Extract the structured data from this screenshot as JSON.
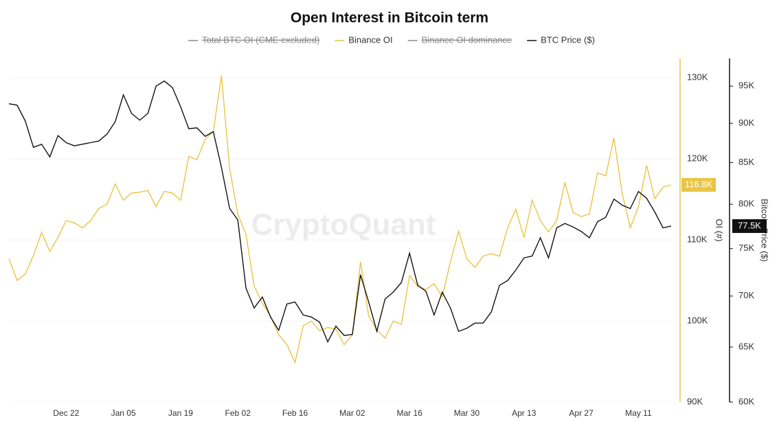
{
  "chart_data": {
    "type": "line",
    "title": "Open Interest in Bitcoin term",
    "watermark": "CryptoQuant",
    "categories": [
      "Dec 08",
      "Dec 10",
      "Dec 12",
      "Dec 14",
      "Dec 16",
      "Dec 18",
      "Dec 20",
      "Dec 22",
      "Dec 24",
      "Dec 26",
      "Dec 28",
      "Dec 30",
      "Jan 01",
      "Jan 03",
      "Jan 05",
      "Jan 07",
      "Jan 09",
      "Jan 11",
      "Jan 13",
      "Jan 15",
      "Jan 17",
      "Jan 19",
      "Jan 21",
      "Jan 23",
      "Jan 25",
      "Jan 27",
      "Jan 29",
      "Jan 31",
      "Feb 02",
      "Feb 04",
      "Feb 06",
      "Feb 08",
      "Feb 10",
      "Feb 12",
      "Feb 14",
      "Feb 16",
      "Feb 18",
      "Feb 20",
      "Feb 22",
      "Feb 24",
      "Feb 26",
      "Feb 28",
      "Mar 02",
      "Mar 04",
      "Mar 06",
      "Mar 08",
      "Mar 10",
      "Mar 12",
      "Mar 14",
      "Mar 16",
      "Mar 18",
      "Mar 20",
      "Mar 22",
      "Mar 24",
      "Mar 26",
      "Mar 28",
      "Mar 30",
      "Apr 01",
      "Apr 03",
      "Apr 05",
      "Apr 07",
      "Apr 09",
      "Apr 11",
      "Apr 13",
      "Apr 15",
      "Apr 17",
      "Apr 19",
      "Apr 21",
      "Apr 23",
      "Apr 25",
      "Apr 27",
      "Apr 29",
      "May 01",
      "May 03",
      "May 05",
      "May 07",
      "May 09",
      "May 11",
      "May 13",
      "May 15",
      "May 17",
      "May 19"
    ],
    "xticks": [
      "Dec 22",
      "Jan 05",
      "Jan 19",
      "Feb 02",
      "Feb 16",
      "Mar 02",
      "Mar 16",
      "Mar 30",
      "Apr 13",
      "Apr 27",
      "May 11"
    ],
    "ylabel": "OI (#)",
    "y2label": "Bitcoin Price ($)",
    "ylim": [
      90000,
      132400
    ],
    "yticks": [
      {
        "value": 90000,
        "label": "90K"
      },
      {
        "value": 100000,
        "label": "100K"
      },
      {
        "value": 110000,
        "label": "110K"
      },
      {
        "value": 120000,
        "label": "120K"
      },
      {
        "value": 130000,
        "label": "130K"
      }
    ],
    "y2lim": [
      60000,
      98900
    ],
    "y2scale": "log",
    "y2ticks": [
      {
        "value": 60000,
        "label": "60K"
      },
      {
        "value": 65000,
        "label": "65K"
      },
      {
        "value": 70000,
        "label": "70K"
      },
      {
        "value": 75000,
        "label": "75K"
      },
      {
        "value": 80000,
        "label": "80K"
      },
      {
        "value": 85000,
        "label": "85K"
      },
      {
        "value": 90000,
        "label": "90K"
      },
      {
        "value": 95000,
        "label": "95K"
      }
    ],
    "grid": true,
    "legend": "top",
    "series": [
      {
        "name": "Total BTC OI (CME excluded)",
        "color": "#888888",
        "visible": false
      },
      {
        "name": "Binance OI",
        "color": "#e8c547",
        "axis": "y",
        "last_label": "116.8K",
        "values": [
          107700,
          105000,
          105800,
          108100,
          110900,
          108600,
          110300,
          112400,
          112100,
          111500,
          112400,
          113900,
          114400,
          116900,
          114900,
          115800,
          115900,
          116100,
          114100,
          116000,
          115800,
          114900,
          120300,
          119900,
          122400,
          123400,
          130300,
          118800,
          113200,
          110700,
          104300,
          102200,
          100600,
          98300,
          97100,
          94900,
          99400,
          100000,
          98800,
          99200,
          99000,
          97100,
          98300,
          107300,
          100600,
          98900,
          97900,
          100000,
          99600,
          105600,
          104300,
          103900,
          104600,
          103000,
          107300,
          111100,
          107700,
          106600,
          108000,
          108300,
          108000,
          111500,
          113800,
          110300,
          114900,
          112400,
          111000,
          112400,
          117100,
          113400,
          112900,
          113200,
          118300,
          117900,
          122600,
          115800,
          111500,
          114100,
          119200,
          115100,
          116500,
          116800
        ]
      },
      {
        "name": "Binance OI dominance",
        "color": "#888888",
        "visible": false
      },
      {
        "name": "BTC Price ($)",
        "color": "#111111",
        "axis": "y2",
        "last_label": "77.5K",
        "values": [
          92600,
          92400,
          90300,
          86900,
          87300,
          85700,
          88400,
          87500,
          87100,
          87300,
          87500,
          87700,
          88600,
          90200,
          93800,
          91300,
          90400,
          91300,
          95000,
          95700,
          94800,
          92200,
          89300,
          89400,
          88300,
          88900,
          84400,
          79500,
          78200,
          70800,
          68800,
          69900,
          67900,
          66600,
          69200,
          69400,
          68100,
          67900,
          67400,
          65500,
          67000,
          66100,
          66200,
          72200,
          69400,
          66500,
          69700,
          70400,
          71400,
          74500,
          71100,
          70500,
          68100,
          70400,
          68800,
          66500,
          66800,
          67300,
          67300,
          68400,
          71100,
          71600,
          72700,
          74000,
          74200,
          76200,
          74000,
          77300,
          77800,
          77400,
          76900,
          76200,
          78000,
          78500,
          80600,
          79900,
          79500,
          81500,
          80700,
          79100,
          77300,
          77500
        ]
      }
    ]
  }
}
